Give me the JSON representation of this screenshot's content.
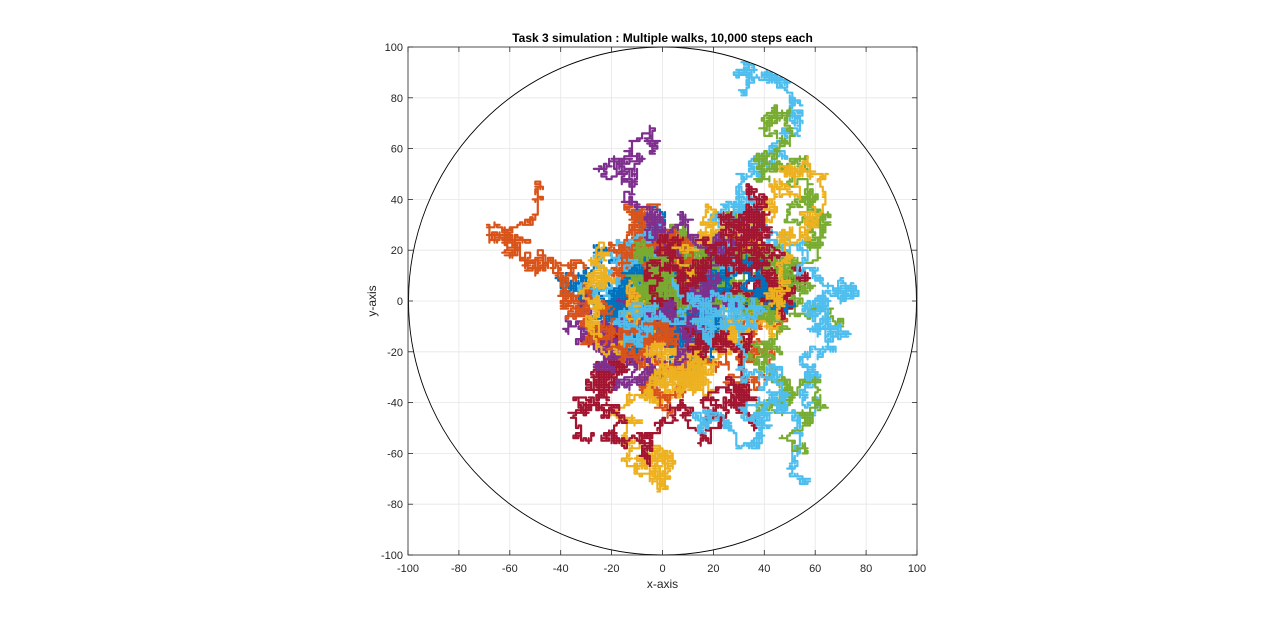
{
  "chart_data": {
    "type": "line",
    "title": "Task 3 simulation : Multiple walks, 10,000 steps each",
    "xlabel": "x-axis",
    "ylabel": "y-axis",
    "xlim": [
      -100,
      100
    ],
    "ylim": [
      -100,
      100
    ],
    "x_ticks": [
      "-100",
      "-80",
      "-60",
      "-40",
      "-20",
      "0",
      "20",
      "40",
      "60",
      "80",
      "100"
    ],
    "y_ticks": [
      "100",
      "80",
      "60",
      "40",
      "20",
      "0",
      "-20",
      "-40",
      "-60",
      "-80",
      "-100"
    ],
    "grid": true,
    "legend": "none",
    "boundary_circle": {
      "center": [
        0,
        0
      ],
      "radius": 100,
      "color": "#000000"
    },
    "steps_per_walk": 10000,
    "series_colors": [
      "#0072BD",
      "#D95319",
      "#EDB120",
      "#7E2F8E",
      "#77AC30",
      "#4DBEEE",
      "#A2142F"
    ]
  }
}
